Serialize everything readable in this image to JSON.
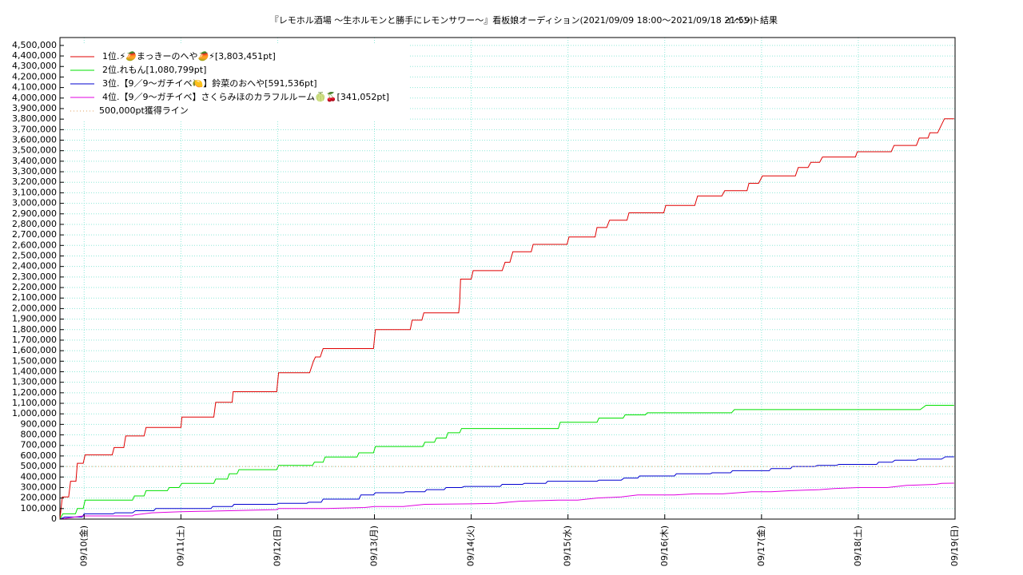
{
  "chart_data": {
    "type": "line",
    "title": "『レモホル酒場 ～生ホルモンと勝手にレモンサワー～』看板娘オーディション(2021/09/09 18:00〜2021/09/18 21:59)",
    "subtitle": "イベント結果",
    "grid": true,
    "legend": "top-left",
    "xlim": [
      9.75,
      19.0
    ],
    "xticks": [
      {
        "value": 10,
        "label": "09/10(金)"
      },
      {
        "value": 11,
        "label": "09/11(土)"
      },
      {
        "value": 12,
        "label": "09/12(日)"
      },
      {
        "value": 13,
        "label": "09/13(月)"
      },
      {
        "value": 14,
        "label": "09/14(火)"
      },
      {
        "value": 15,
        "label": "09/15(水)"
      },
      {
        "value": 16,
        "label": "09/16(木)"
      },
      {
        "value": 17,
        "label": "09/17(金)"
      },
      {
        "value": 18,
        "label": "09/18(土)"
      },
      {
        "value": 19,
        "label": "09/19(日)"
      }
    ],
    "ylim": [
      0,
      4575000
    ],
    "yticks": [
      0,
      {
        "value": 100000,
        "label": "100,000"
      },
      {
        "value": 200000,
        "label": "200,000"
      },
      {
        "value": 300000,
        "label": "300,000"
      },
      {
        "value": 400000,
        "label": "400,000"
      },
      {
        "value": 500000,
        "label": "500,000"
      },
      {
        "value": 600000,
        "label": "600,000"
      },
      {
        "value": 700000,
        "label": "700,000"
      },
      {
        "value": 800000,
        "label": "800,000"
      },
      {
        "value": 900000,
        "label": "900,000"
      },
      {
        "value": 1000000,
        "label": "1,000,000"
      },
      {
        "value": 1100000,
        "label": "1,100,000"
      },
      {
        "value": 1200000,
        "label": "1,200,000"
      },
      {
        "value": 1300000,
        "label": "1,300,000"
      },
      {
        "value": 1400000,
        "label": "1,400,000"
      },
      {
        "value": 1500000,
        "label": "1,500,000"
      },
      {
        "value": 1600000,
        "label": "1,600,000"
      },
      {
        "value": 1700000,
        "label": "1,700,000"
      },
      {
        "value": 1800000,
        "label": "1,800,000"
      },
      {
        "value": 1900000,
        "label": "1,900,000"
      },
      {
        "value": 2000000,
        "label": "2,000,000"
      },
      {
        "value": 2100000,
        "label": "2,100,000"
      },
      {
        "value": 2200000,
        "label": "2,200,000"
      },
      {
        "value": 2300000,
        "label": "2,300,000"
      },
      {
        "value": 2400000,
        "label": "2,400,000"
      },
      {
        "value": 2500000,
        "label": "2,500,000"
      },
      {
        "value": 2600000,
        "label": "2,600,000"
      },
      {
        "value": 2700000,
        "label": "2,700,000"
      },
      {
        "value": 2800000,
        "label": "2,800,000"
      },
      {
        "value": 2900000,
        "label": "2,900,000"
      },
      {
        "value": 3000000,
        "label": "3,000,000"
      },
      {
        "value": 3100000,
        "label": "3,100,000"
      },
      {
        "value": 3200000,
        "label": "3,200,000"
      },
      {
        "value": 3300000,
        "label": "3,300,000"
      },
      {
        "value": 3400000,
        "label": "3,400,000"
      },
      {
        "value": 3500000,
        "label": "3,500,000"
      },
      {
        "value": 3600000,
        "label": "3,600,000"
      },
      {
        "value": 3700000,
        "label": "3,700,000"
      },
      {
        "value": 3800000,
        "label": "3,800,000"
      },
      {
        "value": 3900000,
        "label": "3,900,000"
      },
      {
        "value": 4000000,
        "label": "4,000,000"
      },
      {
        "value": 4100000,
        "label": "4,100,000"
      },
      {
        "value": 4200000,
        "label": "4,200,000"
      },
      {
        "value": 4300000,
        "label": "4,300,000"
      },
      {
        "value": 4400000,
        "label": "4,400,000"
      },
      {
        "value": 4500000,
        "label": "4,500,000"
      }
    ],
    "series": [
      {
        "name": "1位.⚡🥭まっきーのへや🥭⚡[3,803,451pt]",
        "color": "#e00000",
        "x": [
          9.75,
          9.775,
          9.84,
          9.86,
          9.915,
          9.93,
          9.99,
          10.01,
          10.29,
          10.31,
          10.41,
          10.43,
          10.62,
          10.64,
          11.0,
          11.01,
          11.34,
          11.36,
          11.53,
          11.54,
          11.99,
          12.01,
          12.33,
          12.37,
          12.39,
          12.44,
          12.47,
          12.99,
          13.01,
          13.37,
          13.39,
          13.49,
          13.51,
          13.87,
          13.88,
          13.89,
          14.0,
          14.02,
          14.32,
          14.35,
          14.4,
          14.43,
          14.62,
          14.64,
          14.99,
          15.01,
          15.28,
          15.3,
          15.4,
          15.43,
          15.61,
          15.63,
          15.99,
          16.01,
          16.31,
          16.34,
          16.59,
          16.62,
          16.85,
          16.87,
          16.97,
          17.01,
          17.35,
          17.38,
          17.48,
          17.51,
          17.6,
          17.63,
          17.97,
          17.99,
          18.34,
          18.37,
          18.6,
          18.63,
          18.72,
          18.74,
          18.82,
          18.89,
          18.99
        ],
        "values": [
          0,
          210000,
          210000,
          360000,
          360000,
          530000,
          530000,
          610000,
          610000,
          680000,
          680000,
          790000,
          790000,
          870000,
          870000,
          970000,
          970000,
          1110000,
          1110000,
          1210000,
          1210000,
          1390000,
          1390000,
          1500000,
          1540000,
          1540000,
          1620000,
          1620000,
          1800000,
          1800000,
          1890000,
          1890000,
          1960000,
          1960000,
          2050000,
          2280000,
          2280000,
          2360000,
          2360000,
          2440000,
          2440000,
          2540000,
          2540000,
          2610000,
          2610000,
          2680000,
          2680000,
          2770000,
          2770000,
          2840000,
          2840000,
          2910000,
          2910000,
          2980000,
          2980000,
          3070000,
          3070000,
          3120000,
          3120000,
          3190000,
          3190000,
          3260000,
          3260000,
          3340000,
          3340000,
          3390000,
          3390000,
          3440000,
          3440000,
          3490000,
          3490000,
          3550000,
          3550000,
          3620000,
          3620000,
          3670000,
          3670000,
          3803451,
          3803451
        ]
      },
      {
        "name": "2位.れもん[1,080,799pt]",
        "color": "#00e000",
        "x": [
          9.75,
          9.78,
          9.91,
          9.93,
          9.99,
          10.01,
          10.5,
          10.52,
          10.62,
          10.64,
          10.86,
          10.88,
          10.98,
          11.01,
          11.34,
          11.36,
          11.48,
          11.5,
          11.58,
          11.6,
          11.99,
          12.01,
          12.36,
          12.38,
          12.47,
          12.49,
          12.82,
          12.84,
          12.99,
          13.01,
          13.5,
          13.52,
          13.62,
          13.64,
          13.74,
          13.76,
          13.88,
          13.9,
          14.9,
          14.92,
          15.3,
          15.32,
          15.57,
          15.59,
          15.8,
          15.82,
          16.69,
          16.72,
          18.64,
          18.7,
          18.99
        ],
        "values": [
          0,
          50000,
          50000,
          100000,
          100000,
          180000,
          180000,
          220000,
          220000,
          270000,
          270000,
          300000,
          300000,
          340000,
          340000,
          380000,
          380000,
          430000,
          430000,
          470000,
          470000,
          510000,
          510000,
          540000,
          540000,
          590000,
          590000,
          630000,
          630000,
          690000,
          690000,
          730000,
          730000,
          770000,
          770000,
          820000,
          820000,
          860000,
          860000,
          920000,
          920000,
          960000,
          960000,
          990000,
          990000,
          1010000,
          1010000,
          1040000,
          1040000,
          1080799,
          1080799
        ]
      },
      {
        "name": "3位.【9／9〜ガチイベ🍋】鈴菜のおへや[591,536pt]",
        "color": "#0000d0",
        "x": [
          9.75,
          9.8,
          9.98,
          10.0,
          10.3,
          10.32,
          10.5,
          10.53,
          10.72,
          10.74,
          11.31,
          11.33,
          11.53,
          11.55,
          11.99,
          12.01,
          12.3,
          12.32,
          12.45,
          12.47,
          12.84,
          12.86,
          12.99,
          13.01,
          13.3,
          13.32,
          13.52,
          13.54,
          13.72,
          13.74,
          13.9,
          13.93,
          14.3,
          14.32,
          14.53,
          14.55,
          14.77,
          14.79,
          15.3,
          15.32,
          15.55,
          15.58,
          15.72,
          15.74,
          16.1,
          16.12,
          16.47,
          16.49,
          16.68,
          16.7,
          17.08,
          17.1,
          17.3,
          17.32,
          17.55,
          17.58,
          17.77,
          17.8,
          18.19,
          18.21,
          18.35,
          18.38,
          18.6,
          18.62,
          18.86,
          18.9,
          18.99
        ],
        "values": [
          0,
          20000,
          20000,
          50000,
          50000,
          60000,
          60000,
          80000,
          80000,
          100000,
          100000,
          120000,
          120000,
          140000,
          140000,
          150000,
          150000,
          160000,
          160000,
          190000,
          190000,
          230000,
          230000,
          250000,
          250000,
          260000,
          260000,
          280000,
          280000,
          300000,
          300000,
          310000,
          310000,
          330000,
          330000,
          340000,
          340000,
          360000,
          360000,
          370000,
          370000,
          390000,
          390000,
          410000,
          410000,
          430000,
          430000,
          440000,
          440000,
          460000,
          460000,
          480000,
          480000,
          500000,
          500000,
          510000,
          510000,
          520000,
          520000,
          540000,
          540000,
          560000,
          560000,
          570000,
          570000,
          591536,
          591536
        ]
      },
      {
        "name": "4位.【9／9〜ガチイベ】さくらみほのカラフルルーム🍈🍒[341,052pt]",
        "color": "#e000e0",
        "x": [
          9.75,
          9.99,
          10.5,
          10.52,
          10.7,
          11.0,
          11.5,
          11.99,
          12.01,
          12.5,
          12.9,
          13.0,
          13.3,
          13.52,
          14.0,
          14.25,
          14.5,
          14.9,
          15.1,
          15.3,
          15.55,
          15.72,
          16.1,
          16.3,
          16.6,
          16.9,
          17.1,
          17.3,
          17.6,
          17.75,
          18.0,
          18.3,
          18.5,
          18.8,
          18.86,
          18.99
        ],
        "values": [
          0,
          30000,
          30000,
          40000,
          60000,
          70000,
          80000,
          90000,
          100000,
          100000,
          110000,
          120000,
          120000,
          140000,
          145000,
          150000,
          170000,
          180000,
          180000,
          200000,
          210000,
          230000,
          230000,
          240000,
          240000,
          260000,
          260000,
          270000,
          280000,
          290000,
          300000,
          300000,
          320000,
          330000,
          340000,
          341052
        ]
      },
      {
        "name": "500,000pt獲得ライン",
        "color": "#e0a060",
        "style": "dotted",
        "x": [
          9.75,
          19.0
        ],
        "values": [
          500000,
          500000
        ]
      }
    ]
  }
}
